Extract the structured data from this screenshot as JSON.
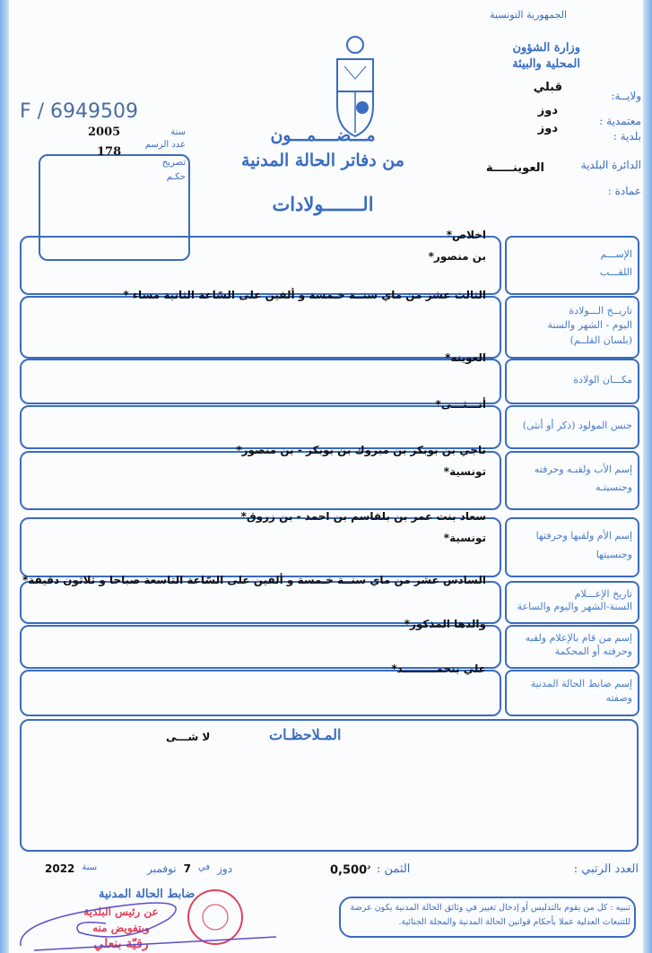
{
  "header": {
    "republic": "الجمهورية التونسية",
    "ministry": "وزارة الشؤون المحلية والبيئة",
    "wilaya_label": "ولايــة:",
    "wilaya_value": "قبلي",
    "delegation_label": "معتمدية :",
    "delegation_value": "دوز",
    "municipality_label": "بلدية :",
    "municipality_value": "دوز",
    "district_label": "الدائرة البلدية",
    "district_value": "العوينـــــة",
    "imada_label": "عمادة :",
    "serial": "F / 6949509"
  },
  "registry_box": {
    "year_label": "سنة",
    "year_value": "2005",
    "record_label": "عدد الرسم",
    "record_value": "178",
    "declaration_label": "تصريح",
    "judgment_label": "حكـم"
  },
  "title": {
    "line1": "مـــضــــمـــون",
    "line2": "من دفاتر الحالة المدنية",
    "line3": "الـــــــولادات"
  },
  "rows": [
    {
      "labels": [
        "الإســـم",
        "اللقـــب"
      ],
      "values": [
        "اخلاص*",
        "بن منصور*"
      ]
    },
    {
      "labels": [
        "تاريــخ الـــولادة",
        "اليوم - الشهر والسنة",
        "(بلسان القلــم)"
      ],
      "values": [
        "الثالث عشر من ماي سنــة خـمسة و ألفين على السّاعة الثانية مساء *"
      ]
    },
    {
      "labels": [
        "مكـــان الولادة"
      ],
      "values": [
        "العوينه*"
      ]
    },
    {
      "labels": [
        "جنس المولود (ذكر أو أنثى)"
      ],
      "values": [
        "أنـــثـــى*"
      ]
    },
    {
      "labels": [
        "إسم الأب ولقبـه وحرفته",
        "وجنسيتـه"
      ],
      "values": [
        "ناجي بن بوبكر بن مبروك بن بوبكر - بن منصور*",
        "تونسية*"
      ]
    },
    {
      "labels": [
        "إسم الأم ولقبها وحرفتها",
        "وجنسيتها"
      ],
      "values": [
        "سعاد بنت عمر بن بلقاسم بن احمد - بن زروق*",
        "تونسية*"
      ]
    },
    {
      "labels": [
        "تاريخ الإعـــلام",
        "السنة-الشهر واليوم والساعة"
      ],
      "values": [
        "السادس عشر من ماي سنــة خـمسة و ألفين على السّاعة التاسعة صباحا و ثلاثون دقيقة*"
      ]
    },
    {
      "labels": [
        "إسم من قام بالإعلام ولقبه",
        "وحرفته أو المحكمة"
      ],
      "values": [
        "والدها المذكور*"
      ]
    },
    {
      "labels": [
        "إسم ضابط الحالة المدنية",
        "وصفته"
      ],
      "values": [
        "علي بنحمـــــــــد*"
      ]
    }
  ],
  "remarks": {
    "label": "المـلاحظـات",
    "value": "لا شـــى"
  },
  "footer": {
    "serial_label": "العدد الرتبي :",
    "price_label": "الثمن :",
    "price_value": "0,500",
    "price_unit": "د",
    "place": "دوز",
    "in": "في",
    "day": "7",
    "month": "نوفمبر",
    "year_label": "سنة",
    "year_value": "2022",
    "warning": "تنبيه : كل من يقوم بالتدليس أو إدخال تغيير في وثائق الحالة المدنية يكون عرضة للتتبعات العدلية عملا بأحكام قوانين الحالة المدنية والمجلة الجنائية.",
    "officer_title": "ضابط الحالة المدنية",
    "stamp_line1": "عن رئيس البلدية",
    "stamp_line2": "وبتفويض منه",
    "stamp_name": "رقيّة بنعلي"
  },
  "colors": {
    "print": "#3a6cc0",
    "ink": "#111111",
    "stamp": "#e0405a",
    "pen": "#5a4fc8"
  }
}
